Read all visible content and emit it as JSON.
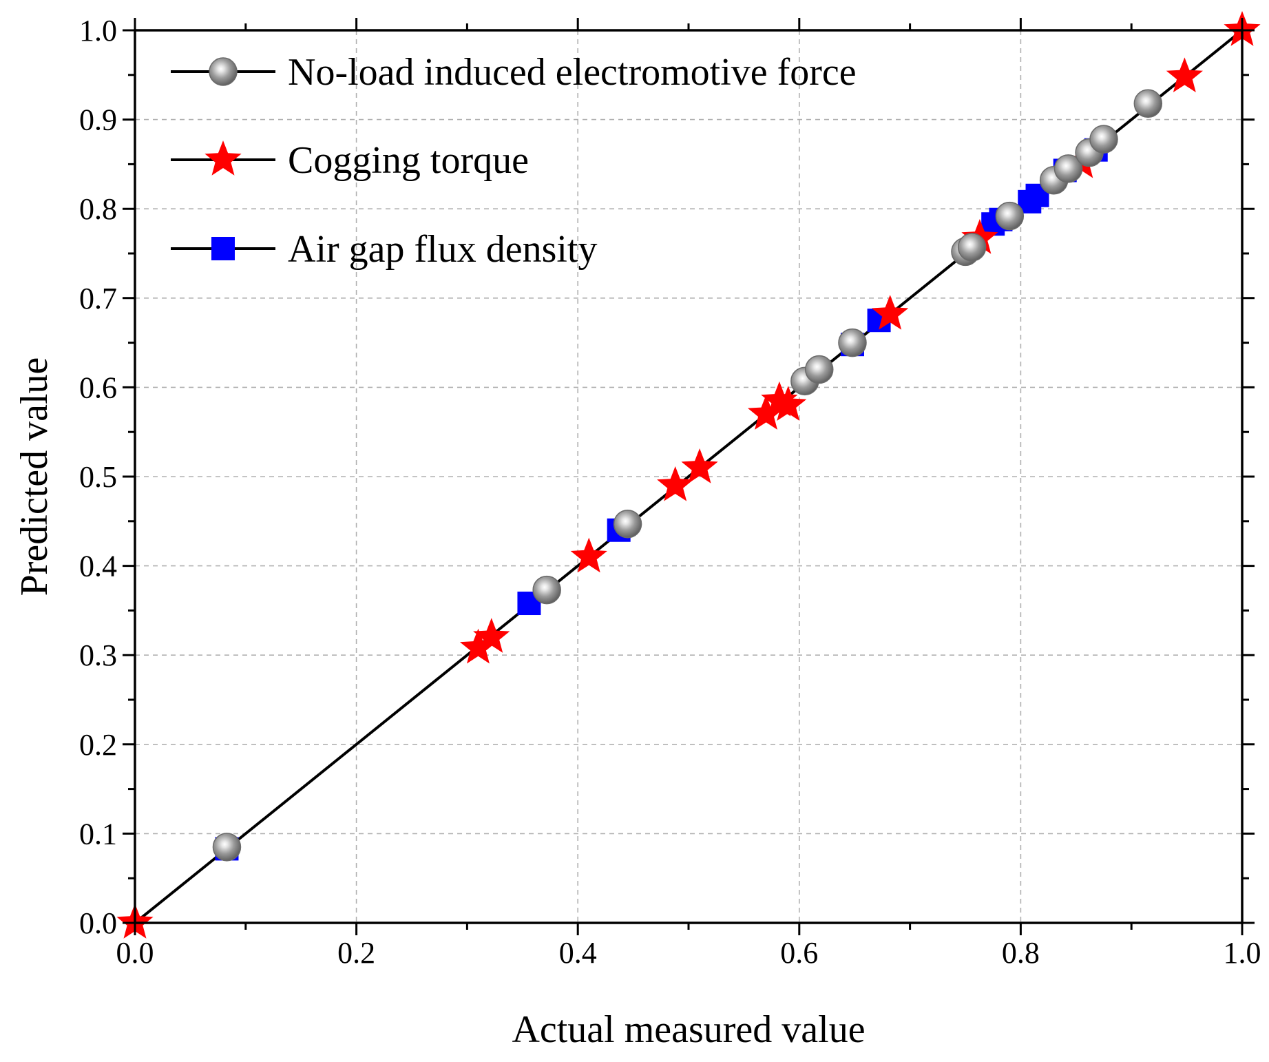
{
  "chart_data": {
    "type": "scatter",
    "xlabel": "Actual measured value",
    "ylabel": "Predicted value",
    "xlim": [
      0,
      1
    ],
    "ylim": [
      0,
      1
    ],
    "xticks": [
      0.0,
      0.2,
      0.4,
      0.6,
      0.8,
      1.0
    ],
    "yticks": [
      0.0,
      0.1,
      0.2,
      0.3,
      0.4,
      0.5,
      0.6,
      0.7,
      0.8,
      0.9,
      1.0
    ],
    "tick_labels_x": [
      "0.0",
      "0.2",
      "0.4",
      "0.6",
      "0.8",
      "1.0"
    ],
    "tick_labels_y": [
      "0.0",
      "0.1",
      "0.2",
      "0.3",
      "0.4",
      "0.5",
      "0.6",
      "0.7",
      "0.8",
      "0.9",
      "1.0"
    ],
    "grid": true,
    "legend_position": "top-left",
    "reference_line": {
      "from": [
        0,
        0
      ],
      "to": [
        1,
        1
      ],
      "color": "#000000"
    },
    "series": [
      {
        "name": "Air gap flux density",
        "marker": "square",
        "color": "#0000ff",
        "points": [
          [
            0.083,
            0.083
          ],
          [
            0.356,
            0.358
          ],
          [
            0.437,
            0.44
          ],
          [
            0.648,
            0.648
          ],
          [
            0.672,
            0.675
          ],
          [
            0.775,
            0.783
          ],
          [
            0.782,
            0.788
          ],
          [
            0.808,
            0.808
          ],
          [
            0.815,
            0.815
          ],
          [
            0.84,
            0.843
          ],
          [
            0.868,
            0.866
          ]
        ]
      },
      {
        "name": "Cogging torque",
        "marker": "star",
        "color": "#ff0000",
        "points": [
          [
            0.0,
            0.0
          ],
          [
            0.31,
            0.308
          ],
          [
            0.322,
            0.32
          ],
          [
            0.41,
            0.41
          ],
          [
            0.488,
            0.49
          ],
          [
            0.51,
            0.51
          ],
          [
            0.57,
            0.57
          ],
          [
            0.582,
            0.585
          ],
          [
            0.59,
            0.58
          ],
          [
            0.682,
            0.682
          ],
          [
            0.763,
            0.767
          ],
          [
            0.855,
            0.852
          ],
          [
            0.948,
            0.948
          ],
          [
            1.0,
            1.0
          ]
        ]
      },
      {
        "name": "No-load induced electromotive force",
        "marker": "circle",
        "color": "#808080",
        "points": [
          [
            0.083,
            0.085
          ],
          [
            0.372,
            0.373
          ],
          [
            0.445,
            0.447
          ],
          [
            0.605,
            0.607
          ],
          [
            0.618,
            0.62
          ],
          [
            0.648,
            0.65
          ],
          [
            0.75,
            0.752
          ],
          [
            0.756,
            0.757
          ],
          [
            0.79,
            0.792
          ],
          [
            0.83,
            0.832
          ],
          [
            0.843,
            0.845
          ],
          [
            0.862,
            0.863
          ],
          [
            0.875,
            0.878
          ],
          [
            0.915,
            0.918
          ]
        ]
      }
    ],
    "legend": [
      {
        "label": "No-load induced electromotive force",
        "marker": "circle"
      },
      {
        "label": "Cogging torque",
        "marker": "star"
      },
      {
        "label": "Air gap flux density",
        "marker": "square"
      }
    ]
  }
}
